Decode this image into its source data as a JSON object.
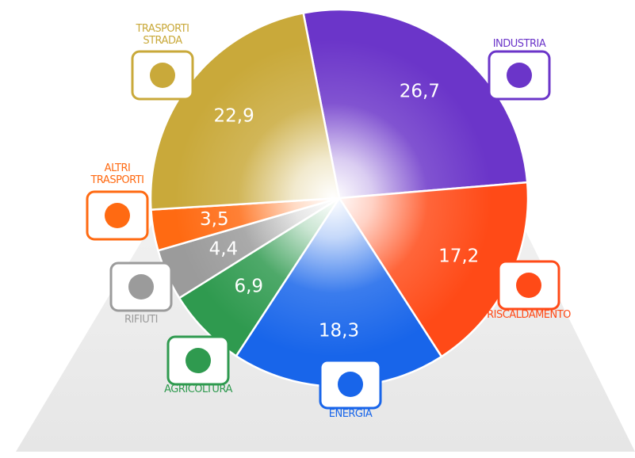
{
  "chart_data": {
    "type": "pie",
    "categories": [
      "INDUSTRIA",
      "RISCALDAMENTO",
      "ENERGIA",
      "AGRICOLTURA",
      "RIFIUTI",
      "ALTRI TRASPORTI",
      "TRASPORTI STRADA"
    ],
    "values": [
      26.7,
      17.2,
      18.3,
      6.9,
      4.4,
      3.5,
      22.9
    ],
    "value_labels": [
      "26,7",
      "17,2",
      "18,3",
      "6,9",
      "4,4",
      "3,5",
      "22,9"
    ],
    "colors": [
      "#6b35c9",
      "#ff4a17",
      "#1865ea",
      "#2f9a4f",
      "#9b9b9b",
      "#ff6a12",
      "#c9a93a"
    ]
  }
}
